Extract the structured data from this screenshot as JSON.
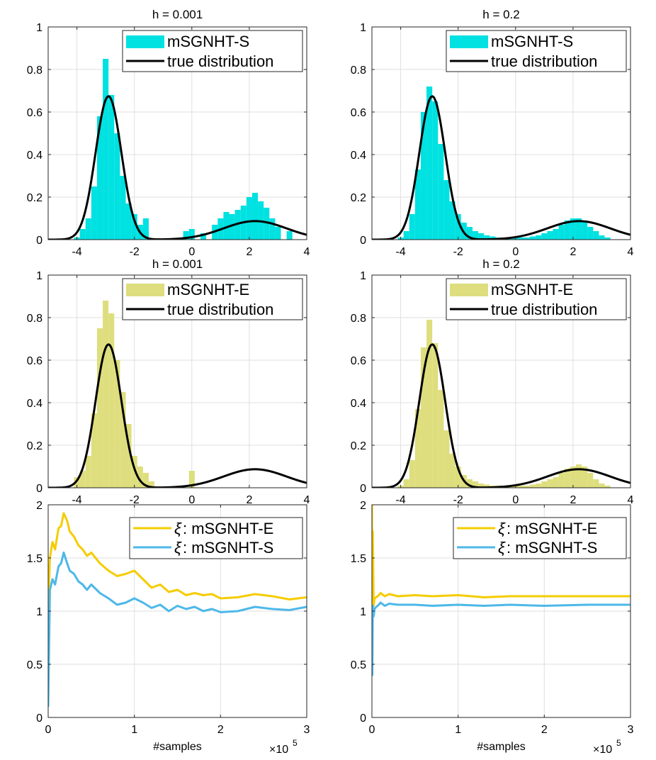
{
  "figure": {
    "x_multiplier_base": "×10",
    "x_multiplier_exp": "5"
  },
  "chart_data": [
    {
      "id": "p1",
      "type": "bar+line",
      "title": "h = 0.001",
      "xlim": [
        -5,
        4
      ],
      "ylim": [
        0,
        1
      ],
      "xticks": [
        -4,
        -2,
        0,
        2,
        4
      ],
      "xticklabels": [
        "-4",
        "-2",
        "0",
        "2",
        "4"
      ],
      "yticks": [
        0,
        0.2,
        0.4,
        0.6,
        0.8,
        1
      ],
      "yticklabels": [
        "0",
        "0.2",
        "0.4",
        "0.6",
        "0.8",
        "1"
      ],
      "legend": {
        "position": "top-right",
        "entries": [
          "mSGNHT-S",
          "true distribution"
        ]
      },
      "hist_color": "#00e1e1",
      "histogram": {
        "bin_centers": [
          -4.2,
          -4.0,
          -3.8,
          -3.6,
          -3.4,
          -3.2,
          -3.0,
          -2.8,
          -2.6,
          -2.4,
          -2.2,
          -2.0,
          -1.8,
          -1.6,
          -0.2,
          0.0,
          0.4,
          0.8,
          1.0,
          1.2,
          1.4,
          1.6,
          1.8,
          2.0,
          2.2,
          2.4,
          2.6,
          2.8,
          3.0,
          3.4
        ],
        "values": [
          0.0,
          0.01,
          0.05,
          0.1,
          0.25,
          0.58,
          0.85,
          0.68,
          0.5,
          0.3,
          0.17,
          0.12,
          0.07,
          0.1,
          0.04,
          0.05,
          0.03,
          0.07,
          0.1,
          0.13,
          0.12,
          0.14,
          0.16,
          0.2,
          0.22,
          0.18,
          0.15,
          0.1,
          0.06,
          0.04
        ]
      },
      "true_distribution_color": "#000000"
    },
    {
      "id": "p2",
      "type": "bar+line",
      "title": "h = 0.2",
      "xlim": [
        -5,
        4
      ],
      "ylim": [
        0,
        1
      ],
      "xticks": [
        -4,
        -2,
        0,
        2,
        4
      ],
      "xticklabels": [
        "-4",
        "-2",
        "0",
        "2",
        "4"
      ],
      "yticks": [
        0,
        0.2,
        0.4,
        0.6,
        0.8,
        1
      ],
      "yticklabels": [
        "0",
        "0.2",
        "0.4",
        "0.6",
        "0.8",
        "1"
      ],
      "legend": {
        "position": "top-right",
        "entries": [
          "mSGNHT-S",
          "true distribution"
        ]
      },
      "hist_color": "#00e1e1",
      "histogram": {
        "bin_centers": [
          -4.2,
          -4.0,
          -3.8,
          -3.6,
          -3.4,
          -3.2,
          -3.0,
          -2.8,
          -2.6,
          -2.4,
          -2.2,
          -2.0,
          -1.8,
          -1.6,
          -1.4,
          -1.2,
          -1.0,
          -0.8,
          -0.6,
          -0.4,
          -0.2,
          0.0,
          0.2,
          0.4,
          0.6,
          0.8,
          1.0,
          1.2,
          1.4,
          1.6,
          1.8,
          2.0,
          2.2,
          2.4,
          2.6,
          2.8,
          3.0,
          3.2
        ],
        "values": [
          0.0,
          0.01,
          0.04,
          0.12,
          0.33,
          0.6,
          0.72,
          0.65,
          0.45,
          0.28,
          0.18,
          0.12,
          0.08,
          0.06,
          0.04,
          0.03,
          0.02,
          0.015,
          0.01,
          0.01,
          0.01,
          0.01,
          0.01,
          0.01,
          0.015,
          0.02,
          0.03,
          0.04,
          0.05,
          0.07,
          0.09,
          0.1,
          0.1,
          0.09,
          0.06,
          0.04,
          0.02,
          0.01
        ]
      },
      "true_distribution_color": "#000000"
    },
    {
      "id": "p3",
      "type": "bar+line",
      "title": "h = 0.001",
      "xlim": [
        -5,
        4
      ],
      "ylim": [
        0,
        1
      ],
      "xticks": [
        -4,
        -2,
        0,
        2,
        4
      ],
      "xticklabels": [
        "-4",
        "-2",
        "0",
        "2",
        "4"
      ],
      "yticks": [
        0,
        0.2,
        0.4,
        0.6,
        0.8,
        1
      ],
      "yticklabels": [
        "0",
        "0.2",
        "0.4",
        "0.6",
        "0.8",
        "1"
      ],
      "legend": {
        "position": "top-right",
        "entries": [
          "mSGNHT-E",
          "true distribution"
        ]
      },
      "hist_color": "#dede7e",
      "histogram": {
        "bin_centers": [
          -4.0,
          -3.8,
          -3.6,
          -3.4,
          -3.2,
          -3.0,
          -2.8,
          -2.6,
          -2.4,
          -2.2,
          -2.0,
          -1.8,
          -1.6,
          -1.4,
          0.0
        ],
        "values": [
          0.05,
          0.08,
          0.15,
          0.35,
          0.75,
          0.88,
          0.82,
          0.6,
          0.45,
          0.3,
          0.15,
          0.1,
          0.07,
          0.03,
          0.08
        ]
      },
      "true_distribution_color": "#000000"
    },
    {
      "id": "p4",
      "type": "bar+line",
      "title": "h = 0.2",
      "xlim": [
        -5,
        4
      ],
      "ylim": [
        0,
        1
      ],
      "xticks": [
        -4,
        -2,
        0,
        2,
        4
      ],
      "xticklabels": [
        "-4",
        "-2",
        "0",
        "2",
        "4"
      ],
      "yticks": [
        0,
        0.2,
        0.4,
        0.6,
        0.8,
        1
      ],
      "yticklabels": [
        "0",
        "0.2",
        "0.4",
        "0.6",
        "0.8",
        "1"
      ],
      "legend": {
        "position": "top-right",
        "entries": [
          "mSGNHT-E",
          "true distribution"
        ]
      },
      "hist_color": "#dede7e",
      "histogram": {
        "bin_centers": [
          -4.2,
          -4.0,
          -3.8,
          -3.6,
          -3.4,
          -3.2,
          -3.0,
          -2.8,
          -2.6,
          -2.4,
          -2.2,
          -2.0,
          -1.8,
          -1.6,
          -1.4,
          -1.2,
          -1.0,
          -0.8,
          -0.6,
          -0.4,
          -0.2,
          0.0,
          0.2,
          0.4,
          0.6,
          0.8,
          1.0,
          1.2,
          1.4,
          1.6,
          1.8,
          2.0,
          2.2,
          2.4,
          2.6,
          2.8,
          3.0,
          3.2
        ],
        "values": [
          0.0,
          0.01,
          0.04,
          0.13,
          0.37,
          0.66,
          0.79,
          0.68,
          0.46,
          0.27,
          0.16,
          0.1,
          0.06,
          0.04,
          0.03,
          0.02,
          0.015,
          0.01,
          0.01,
          0.01,
          0.01,
          0.01,
          0.01,
          0.01,
          0.015,
          0.02,
          0.03,
          0.04,
          0.05,
          0.07,
          0.09,
          0.1,
          0.11,
          0.1,
          0.07,
          0.04,
          0.02,
          0.01
        ]
      },
      "true_distribution_color": "#000000"
    },
    {
      "id": "p5",
      "type": "line",
      "xlim": [
        0,
        3
      ],
      "ylim": [
        0,
        2
      ],
      "xlabel": "#samples",
      "xticks": [
        0,
        1,
        2,
        3
      ],
      "xticklabels": [
        "0",
        "1",
        "2",
        "3"
      ],
      "yticks": [
        0,
        0.5,
        1,
        1.5,
        2
      ],
      "yticklabels": [
        "0",
        "0.5",
        "1",
        "1.5",
        "2"
      ],
      "legend": {
        "position": "top-right",
        "symbol": "ξ",
        "entries": [
          ": mSGNHT-E",
          ": mSGNHT-S"
        ]
      },
      "series": [
        {
          "color": "#f5cc00",
          "x": [
            0,
            0.02,
            0.05,
            0.08,
            0.12,
            0.15,
            0.18,
            0.22,
            0.25,
            0.3,
            0.35,
            0.4,
            0.45,
            0.5,
            0.6,
            0.7,
            0.8,
            0.9,
            1.0,
            1.1,
            1.2,
            1.3,
            1.4,
            1.5,
            1.6,
            1.7,
            1.8,
            1.9,
            2.0,
            2.2,
            2.4,
            2.6,
            2.8,
            3.0
          ],
          "y": [
            1.0,
            1.5,
            1.65,
            1.58,
            1.78,
            1.8,
            1.92,
            1.85,
            1.75,
            1.7,
            1.62,
            1.58,
            1.52,
            1.55,
            1.45,
            1.38,
            1.33,
            1.35,
            1.38,
            1.3,
            1.22,
            1.25,
            1.18,
            1.2,
            1.15,
            1.17,
            1.15,
            1.16,
            1.12,
            1.13,
            1.16,
            1.14,
            1.11,
            1.13
          ]
        },
        {
          "color": "#4db8e8",
          "x": [
            0,
            0.02,
            0.05,
            0.08,
            0.12,
            0.15,
            0.18,
            0.22,
            0.25,
            0.3,
            0.35,
            0.4,
            0.45,
            0.5,
            0.6,
            0.7,
            0.8,
            0.9,
            1.0,
            1.1,
            1.2,
            1.3,
            1.4,
            1.5,
            1.6,
            1.7,
            1.8,
            1.9,
            2.0,
            2.2,
            2.4,
            2.6,
            2.8,
            3.0
          ],
          "y": [
            0.1,
            1.2,
            1.3,
            1.25,
            1.42,
            1.45,
            1.55,
            1.45,
            1.38,
            1.35,
            1.28,
            1.25,
            1.2,
            1.25,
            1.17,
            1.12,
            1.06,
            1.08,
            1.12,
            1.08,
            1.03,
            1.06,
            1.0,
            1.05,
            1.02,
            1.04,
            1.0,
            1.02,
            0.99,
            1.0,
            1.04,
            1.02,
            1.01,
            1.04
          ]
        }
      ]
    },
    {
      "id": "p6",
      "type": "line",
      "xlim": [
        0,
        3
      ],
      "ylim": [
        0,
        2
      ],
      "xlabel": "#samples",
      "xticks": [
        0,
        1,
        2,
        3
      ],
      "xticklabels": [
        "0",
        "1",
        "2",
        "3"
      ],
      "yticks": [
        0,
        0.5,
        1,
        1.5,
        2
      ],
      "yticklabels": [
        "0",
        "0.5",
        "1",
        "1.5",
        "2"
      ],
      "legend": {
        "position": "top-right",
        "symbol": "ξ",
        "entries": [
          ": mSGNHT-E",
          ": mSGNHT-S"
        ]
      },
      "series": [
        {
          "color": "#f5cc00",
          "x": [
            0,
            0.005,
            0.01,
            0.02,
            0.03,
            0.05,
            0.08,
            0.1,
            0.15,
            0.2,
            0.3,
            0.5,
            0.7,
            1.0,
            1.3,
            1.6,
            2.0,
            2.5,
            3.0
          ],
          "y": [
            2.0,
            0.6,
            1.75,
            1.05,
            1.12,
            1.13,
            1.15,
            1.17,
            1.14,
            1.16,
            1.14,
            1.15,
            1.14,
            1.15,
            1.13,
            1.14,
            1.14,
            1.14,
            1.14
          ]
        },
        {
          "color": "#4db8e8",
          "x": [
            0,
            0.005,
            0.01,
            0.02,
            0.03,
            0.05,
            0.08,
            0.1,
            0.15,
            0.2,
            0.3,
            0.5,
            0.7,
            1.0,
            1.3,
            1.6,
            2.0,
            2.5,
            3.0
          ],
          "y": [
            0.6,
            0.4,
            1.05,
            0.95,
            1.02,
            1.04,
            1.06,
            1.08,
            1.05,
            1.07,
            1.06,
            1.06,
            1.05,
            1.06,
            1.05,
            1.06,
            1.05,
            1.06,
            1.06
          ]
        }
      ]
    }
  ]
}
